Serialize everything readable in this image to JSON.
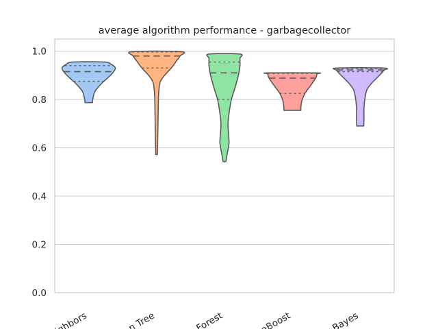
{
  "chart_data": {
    "type": "violin",
    "title": "average algorithm performance - garbagecollector",
    "xlabel": "",
    "ylabel": "",
    "ylim": [
      0.0,
      1.05
    ],
    "yticks": [
      "0.0",
      "0.2",
      "0.4",
      "0.6",
      "0.8",
      "1.0"
    ],
    "grid": "horizontal",
    "categories": [
      "Neighbors",
      "Decision Tree",
      "Random Forest",
      "AdaBoost",
      "Naive Bayes"
    ],
    "xtick_labels_visible": [
      "ighbors",
      "n Tree",
      "Forest",
      "aBoost",
      "Bayes"
    ],
    "colors": [
      "#a1c9f4",
      "#ffb482",
      "#8de5a1",
      "#ff9f9b",
      "#d0bbff"
    ],
    "violins": [
      {
        "name": "Neighbors",
        "min": 0.787,
        "max": 0.955,
        "q1": 0.875,
        "median": 0.915,
        "q3": 0.94,
        "profile": [
          [
            0.787,
            0.14
          ],
          [
            0.8,
            0.15
          ],
          [
            0.83,
            0.22
          ],
          [
            0.85,
            0.35
          ],
          [
            0.87,
            0.52
          ],
          [
            0.89,
            0.72
          ],
          [
            0.91,
            0.9
          ],
          [
            0.93,
            1.0
          ],
          [
            0.945,
            0.85
          ],
          [
            0.955,
            0.58
          ]
        ]
      },
      {
        "name": "Decision Tree",
        "min": 0.572,
        "max": 0.998,
        "q1": 0.93,
        "median": 0.98,
        "q3": 0.997,
        "profile": [
          [
            0.572,
            0.03
          ],
          [
            0.65,
            0.045
          ],
          [
            0.75,
            0.06
          ],
          [
            0.82,
            0.075
          ],
          [
            0.87,
            0.13
          ],
          [
            0.9,
            0.3
          ],
          [
            0.93,
            0.55
          ],
          [
            0.96,
            0.75
          ],
          [
            0.98,
            0.88
          ],
          [
            0.998,
            0.92
          ]
        ]
      },
      {
        "name": "Random Forest",
        "min": 0.542,
        "max": 0.988,
        "q1": 0.8,
        "median": 0.91,
        "q3": 0.955,
        "profile": [
          [
            0.542,
            0.05
          ],
          [
            0.58,
            0.11
          ],
          [
            0.62,
            0.17
          ],
          [
            0.66,
            0.15
          ],
          [
            0.7,
            0.13
          ],
          [
            0.75,
            0.18
          ],
          [
            0.8,
            0.26
          ],
          [
            0.85,
            0.4
          ],
          [
            0.9,
            0.52
          ],
          [
            0.94,
            0.58
          ],
          [
            0.97,
            0.58
          ],
          [
            0.988,
            0.58
          ]
        ]
      },
      {
        "name": "AdaBoost",
        "min": 0.755,
        "max": 0.91,
        "q1": 0.825,
        "median": 0.888,
        "q3": 0.908,
        "profile": [
          [
            0.755,
            0.32
          ],
          [
            0.77,
            0.32
          ],
          [
            0.8,
            0.37
          ],
          [
            0.83,
            0.5
          ],
          [
            0.86,
            0.7
          ],
          [
            0.89,
            0.88
          ],
          [
            0.905,
            0.92
          ],
          [
            0.91,
            0.92
          ]
        ]
      },
      {
        "name": "Naive Bayes",
        "min": 0.69,
        "max": 0.93,
        "q1": 0.915,
        "median": 0.922,
        "q3": 0.928,
        "profile": [
          [
            0.69,
            0.13
          ],
          [
            0.72,
            0.14
          ],
          [
            0.76,
            0.14
          ],
          [
            0.8,
            0.17
          ],
          [
            0.84,
            0.25
          ],
          [
            0.87,
            0.45
          ],
          [
            0.9,
            0.72
          ],
          [
            0.92,
            0.88
          ],
          [
            0.93,
            0.88
          ]
        ]
      }
    ]
  }
}
